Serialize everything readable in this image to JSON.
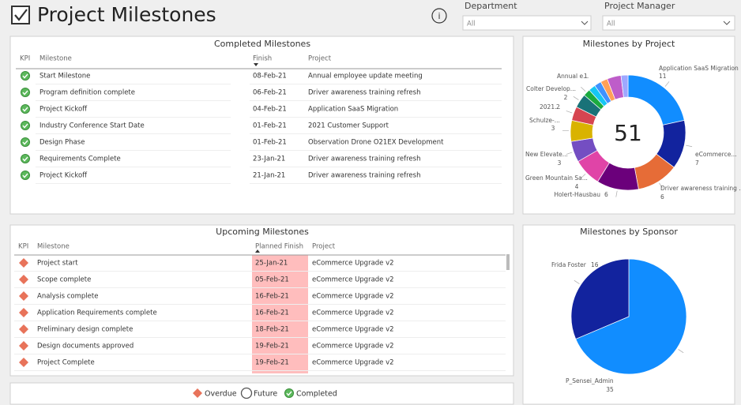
{
  "header": {
    "title": "Project Milestones"
  },
  "filters": [
    {
      "label": "Department",
      "value": "All"
    },
    {
      "label": "Project Manager",
      "value": "All"
    }
  ],
  "completed": {
    "title": "Completed Milestones",
    "columns": [
      "KPI",
      "Milestone",
      "Finish",
      "Project"
    ],
    "rows": [
      [
        "Start Milestone",
        "08-Feb-21",
        "Annual employee update meeting"
      ],
      [
        "Program definition complete",
        "06-Feb-21",
        "Driver awareness training refresh"
      ],
      [
        "Project Kickoff",
        "04-Feb-21",
        "Application SaaS Migration"
      ],
      [
        "Industry Conference Start Date",
        "01-Feb-21",
        "2021 Customer Support"
      ],
      [
        "Design Phase",
        "01-Feb-21",
        "Observation Drone O21EX Development"
      ],
      [
        "Requirements Complete",
        "23-Jan-21",
        "Driver awareness training refresh"
      ],
      [
        "Project Kickoff",
        "21-Jan-21",
        "Driver awareness training refresh"
      ]
    ]
  },
  "upcoming": {
    "title": "Upcoming Milestones",
    "columns": [
      "KPI",
      "Milestone",
      "Planned Finish",
      "Project"
    ],
    "rows": [
      [
        "Project start",
        "25-Jan-21",
        "eCommerce Upgrade v2"
      ],
      [
        "Scope complete",
        "05-Feb-21",
        "eCommerce Upgrade v2"
      ],
      [
        "Analysis complete",
        "16-Feb-21",
        "eCommerce Upgrade v2"
      ],
      [
        "Application Requirements complete",
        "16-Feb-21",
        "eCommerce Upgrade v2"
      ],
      [
        "Preliminary design complete",
        "18-Feb-21",
        "eCommerce Upgrade v2"
      ],
      [
        "Design documents approved",
        "19-Feb-21",
        "eCommerce Upgrade v2"
      ],
      [
        "Project Complete",
        "19-Feb-21",
        "eCommerce Upgrade v2"
      ]
    ]
  },
  "legend": [
    "Overdue",
    "Future",
    "Completed"
  ],
  "chart_data": [
    {
      "type": "donut",
      "title": "Milestones by Project",
      "total": 51,
      "categories": [
        "Application SaaS Migration",
        "eCommerce...",
        "Driver awareness training ...",
        "Holert-Hausbau",
        "Green Mountain Sa...",
        "New Elevate...",
        "Schulze-...",
        "2021...",
        "Colter Develop...",
        "Annual e...",
        null,
        null,
        null,
        null,
        null
      ],
      "values": [
        11,
        7,
        6,
        6,
        4,
        3,
        3,
        2,
        2,
        1,
        1,
        1,
        1,
        2,
        1
      ],
      "colors": [
        "#118dff",
        "#12239e",
        "#e66c37",
        "#6b007b",
        "#e044a7",
        "#744ec2",
        "#d9b300",
        "#d64550",
        "#197278",
        "#1aab40",
        "#15c6f4",
        "#4092ff",
        "#ffa058",
        "#be5dc9",
        "#9ea8ff"
      ]
    },
    {
      "type": "pie",
      "title": "Milestones by Sponsor",
      "categories": [
        "P_Sensei_Admin",
        "Frida Foster"
      ],
      "values": [
        35,
        16
      ],
      "colors": [
        "#118dff",
        "#12239e"
      ]
    }
  ]
}
